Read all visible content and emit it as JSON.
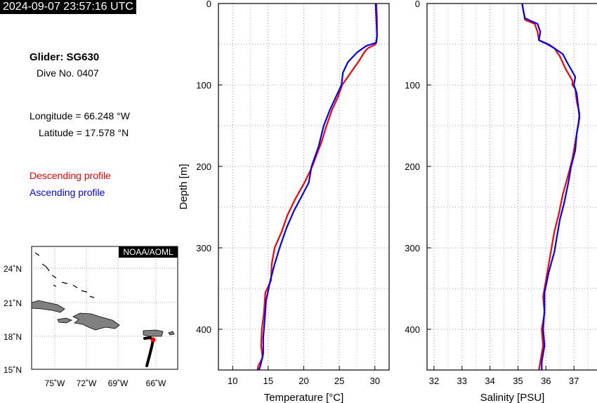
{
  "timestamp": "2024-09-07 23:57:16 UTC",
  "glider": "Glider: SG630",
  "dive": "Dive No. 0407",
  "longitude": "Longitude = 66.248 °W",
  "latitude": "Latitude = 17.578 °N",
  "legend": {
    "descending": "Descending profile",
    "ascending": "Ascending profile",
    "descending_color": "#ff0000",
    "ascending_color": "#0000ff"
  },
  "map": {
    "credit": "NOAA/AOML",
    "lat_labels": [
      "24˚N",
      "21˚N",
      "18˚N",
      "15˚N"
    ],
    "lon_labels": [
      "75˚W",
      "72˚W",
      "69˚W",
      "66˚W"
    ],
    "land_color": "#808080",
    "track_color": "#000000",
    "position_color": "#ff0000"
  },
  "chart_data": [
    {
      "type": "line",
      "xlabel": "Temperature [°C]",
      "ylabel": "Depth [m]",
      "xlim": [
        8,
        32
      ],
      "ylim": [
        450,
        0
      ],
      "x_ticks": [
        "10",
        "15",
        "20",
        "25",
        "30"
      ],
      "y_ticks": [
        "0",
        "100",
        "200",
        "300",
        "400"
      ],
      "grid": true,
      "series": [
        {
          "name": "Descending profile",
          "color": "#ff0000",
          "points": [
            [
              30.2,
              0
            ],
            [
              30.3,
              20
            ],
            [
              30.3,
              40
            ],
            [
              30.1,
              50
            ],
            [
              29.0,
              55
            ],
            [
              28.5,
              60
            ],
            [
              27.8,
              70
            ],
            [
              26.6,
              85
            ],
            [
              25.4,
              100
            ],
            [
              24.8,
              115
            ],
            [
              24.0,
              130
            ],
            [
              23.2,
              150
            ],
            [
              22.5,
              170
            ],
            [
              21.2,
              200
            ],
            [
              20.1,
              220
            ],
            [
              18.8,
              240
            ],
            [
              17.7,
              260
            ],
            [
              16.9,
              280
            ],
            [
              15.9,
              300
            ],
            [
              15.5,
              320
            ],
            [
              15.4,
              340
            ],
            [
              14.6,
              355
            ],
            [
              14.4,
              380
            ],
            [
              14.1,
              400
            ],
            [
              14.0,
              420
            ],
            [
              14.2,
              435
            ],
            [
              13.6,
              445
            ],
            [
              13.5,
              450
            ]
          ]
        },
        {
          "name": "Ascending profile",
          "color": "#0000ff",
          "points": [
            [
              30.1,
              0
            ],
            [
              30.2,
              20
            ],
            [
              30.3,
              40
            ],
            [
              30.2,
              48
            ],
            [
              28.8,
              52
            ],
            [
              27.5,
              60
            ],
            [
              26.2,
              72
            ],
            [
              25.5,
              85
            ],
            [
              25.3,
              100
            ],
            [
              24.5,
              115
            ],
            [
              23.7,
              130
            ],
            [
              22.8,
              150
            ],
            [
              22.1,
              175
            ],
            [
              21.1,
              200
            ],
            [
              20.7,
              220
            ],
            [
              19.8,
              235
            ],
            [
              18.6,
              255
            ],
            [
              17.6,
              275
            ],
            [
              16.6,
              300
            ],
            [
              15.9,
              320
            ],
            [
              15.3,
              340
            ],
            [
              14.7,
              365
            ],
            [
              14.5,
              390
            ],
            [
              14.3,
              410
            ],
            [
              14.3,
              430
            ],
            [
              13.9,
              445
            ],
            [
              13.7,
              450
            ]
          ]
        }
      ]
    },
    {
      "type": "line",
      "xlabel": "Salinity [PSU]",
      "ylabel": "",
      "xlim": [
        31.75,
        37.85
      ],
      "ylim": [
        450,
        0
      ],
      "x_ticks": [
        "32",
        "33",
        "34",
        "35",
        "36",
        "37"
      ],
      "y_ticks": [
        "0",
        "100",
        "200",
        "300",
        "400"
      ],
      "grid": true,
      "series": [
        {
          "name": "Descending profile",
          "color": "#ff0000",
          "points": [
            [
              35.15,
              0
            ],
            [
              35.2,
              10
            ],
            [
              35.25,
              20
            ],
            [
              35.6,
              25
            ],
            [
              35.7,
              35
            ],
            [
              35.75,
              45
            ],
            [
              36.1,
              50
            ],
            [
              36.3,
              55
            ],
            [
              36.5,
              65
            ],
            [
              36.7,
              80
            ],
            [
              36.95,
              95
            ],
            [
              36.95,
              100
            ],
            [
              37.05,
              105
            ],
            [
              37.1,
              120
            ],
            [
              37.2,
              135
            ],
            [
              37.15,
              150
            ],
            [
              37.05,
              170
            ],
            [
              36.95,
              190
            ],
            [
              36.8,
              210
            ],
            [
              36.6,
              235
            ],
            [
              36.45,
              260
            ],
            [
              36.3,
              280
            ],
            [
              36.2,
              300
            ],
            [
              36.1,
              320
            ],
            [
              36.0,
              340
            ],
            [
              35.9,
              360
            ],
            [
              35.95,
              380
            ],
            [
              35.85,
              400
            ],
            [
              35.9,
              420
            ],
            [
              35.8,
              440
            ],
            [
              35.75,
              450
            ]
          ]
        },
        {
          "name": "Ascending profile",
          "color": "#0000ff",
          "points": [
            [
              35.15,
              0
            ],
            [
              35.2,
              10
            ],
            [
              35.25,
              18
            ],
            [
              35.7,
              25
            ],
            [
              35.8,
              35
            ],
            [
              35.75,
              45
            ],
            [
              36.05,
              50
            ],
            [
              36.3,
              55
            ],
            [
              36.6,
              62
            ],
            [
              36.8,
              75
            ],
            [
              37.05,
              90
            ],
            [
              37.0,
              100
            ],
            [
              37.1,
              110
            ],
            [
              37.15,
              125
            ],
            [
              37.2,
              140
            ],
            [
              37.1,
              160
            ],
            [
              37.05,
              180
            ],
            [
              36.9,
              200
            ],
            [
              36.8,
              220
            ],
            [
              36.65,
              245
            ],
            [
              36.5,
              265
            ],
            [
              36.4,
              285
            ],
            [
              36.3,
              305
            ],
            [
              36.1,
              330
            ],
            [
              35.95,
              355
            ],
            [
              35.95,
              375
            ],
            [
              35.9,
              400
            ],
            [
              35.95,
              420
            ],
            [
              35.85,
              440
            ],
            [
              35.85,
              450
            ]
          ]
        }
      ]
    }
  ]
}
